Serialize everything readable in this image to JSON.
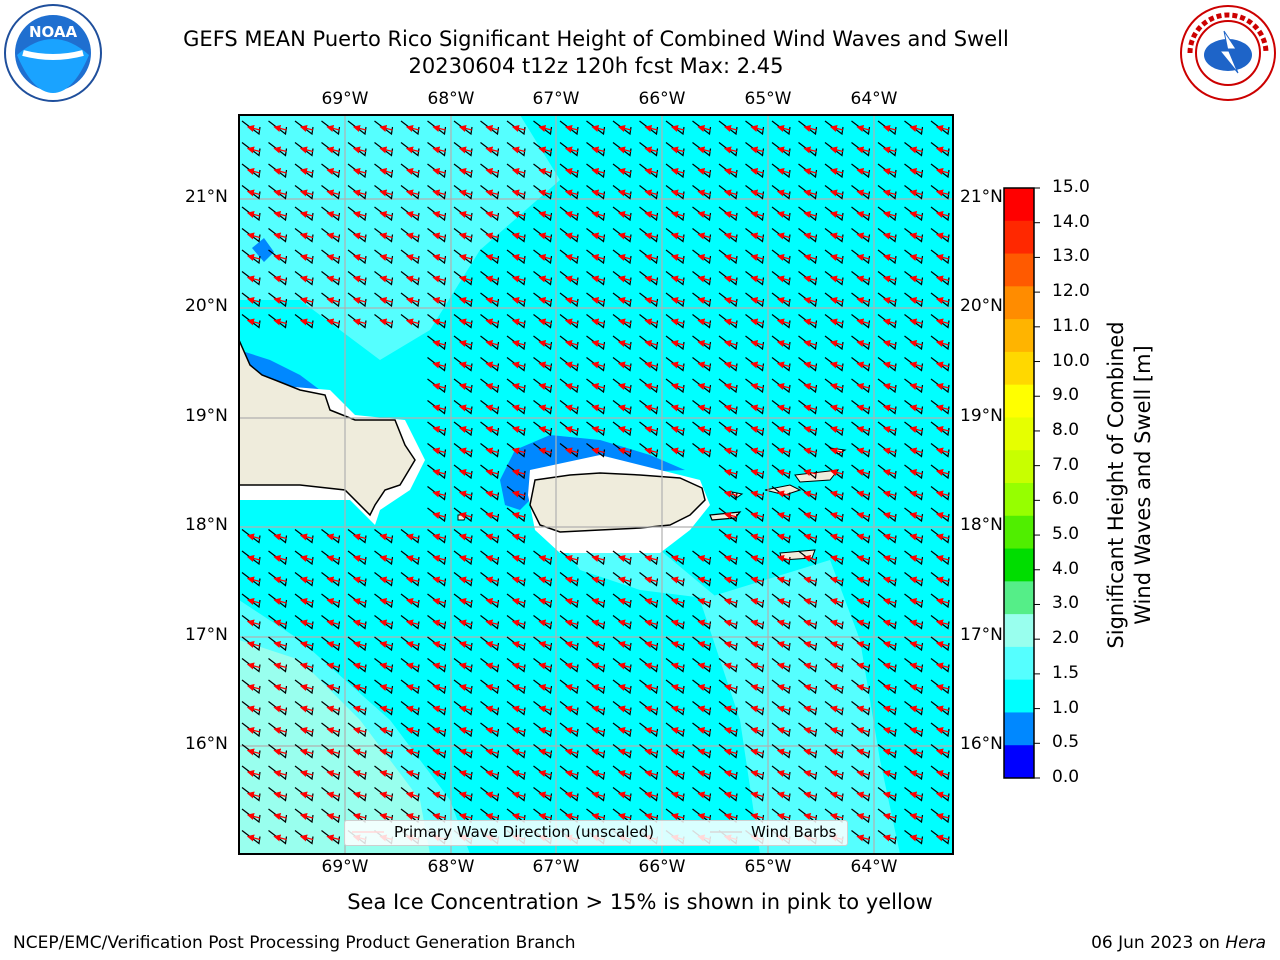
{
  "title": {
    "line1": "GEFS MEAN Puerto Rico Significant Height of Combined Wind Waves and Swell",
    "line2": "20230604 t12z 120h fcst   Max: 2.45"
  },
  "logos": {
    "left": "NOAA",
    "right": "NATIONAL WEATHER SERVICE",
    "left_icon": "noaa-logo-icon",
    "right_icon": "nws-logo-icon"
  },
  "map": {
    "lon_labels": [
      "69°W",
      "68°W",
      "67°W",
      "66°W",
      "65°W",
      "64°W"
    ],
    "lat_labels": [
      "21°N",
      "20°N",
      "19°N",
      "18°N",
      "17°N",
      "16°N"
    ],
    "colors": {
      "ocean": "#00ffff",
      "land": "#efecdc",
      "arrows": "#ff0000",
      "barbs": "#000000"
    }
  },
  "legend": {
    "wave_dir": "Primary Wave Direction (unscaled)",
    "wind_barbs": "Wind Barbs"
  },
  "colorbar": {
    "title_line1": "Significant Height of Combined",
    "title_line2": "Wind Waves and Swell [m]",
    "ticks": [
      "15.0",
      "14.0",
      "13.0",
      "12.0",
      "11.0",
      "10.0",
      "9.0",
      "8.0",
      "7.0",
      "6.0",
      "5.0",
      "4.0",
      "3.0",
      "2.0",
      "1.5",
      "1.0",
      "0.5",
      "0.0"
    ],
    "colors": [
      "#ff0000",
      "#ff2800",
      "#ff5a00",
      "#ff8c00",
      "#ffb400",
      "#ffd800",
      "#ffff00",
      "#e6ff00",
      "#c8ff00",
      "#96ff00",
      "#50ee00",
      "#00dd00",
      "#55ee88",
      "#99ffee",
      "#55ffff",
      "#00ffff",
      "#0088ff",
      "#0000ff"
    ]
  },
  "note": "Sea Ice Concentration > 15% is shown in pink to yellow",
  "footer": {
    "left": "NCEP/EMC/Verification Post Processing Product Generation Branch",
    "date": "06 Jun 2023 on ",
    "machine": "Hera"
  }
}
